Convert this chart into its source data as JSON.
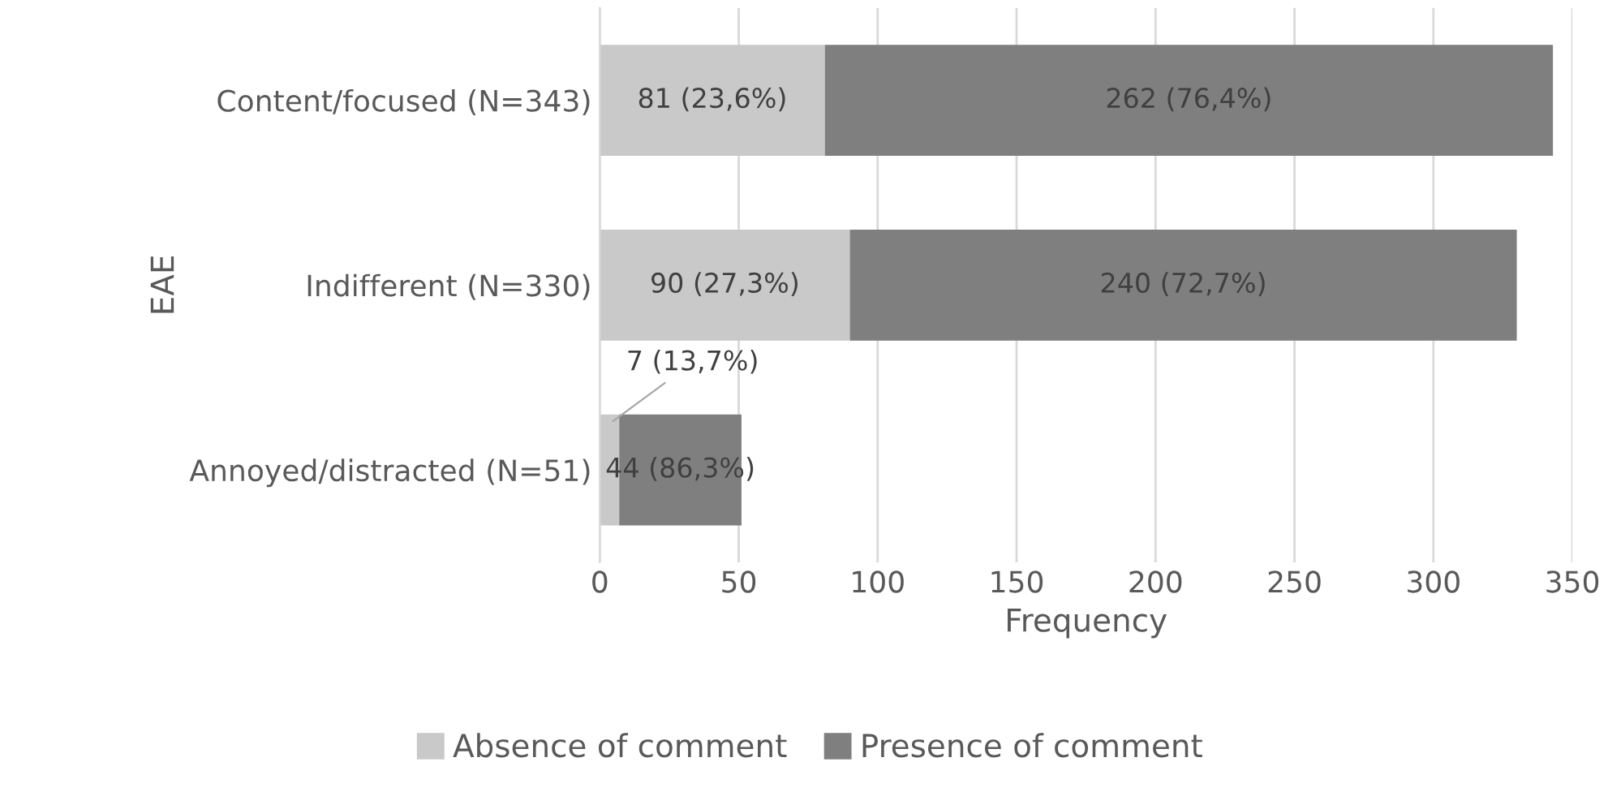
{
  "chart_data": {
    "type": "bar",
    "orientation": "horizontal",
    "stacked": true,
    "xlabel": "Frequency",
    "ylabel": "EAE",
    "categories": [
      "Content/focused (N=343)",
      "Indifferent (N=330)",
      "Annoyed/distracted (N=51)"
    ],
    "series": [
      {
        "name": "Absence of comment",
        "color": "#c9c9c9",
        "values": [
          81,
          90,
          7
        ],
        "value_labels": [
          "81 (23,6%)",
          "90 (27,3%)",
          "7 (13,7%)"
        ]
      },
      {
        "name": "Presence of comment",
        "color": "#7f7f7f",
        "values": [
          262,
          240,
          44
        ],
        "value_labels": [
          "262 (76,4%)",
          "240 (72,7%)",
          "44 (86,3%)"
        ]
      }
    ],
    "xlim": [
      0,
      350
    ],
    "xticks": [
      0,
      50,
      100,
      150,
      200,
      250,
      300,
      350
    ],
    "grid": "x",
    "legend": "bottom"
  }
}
